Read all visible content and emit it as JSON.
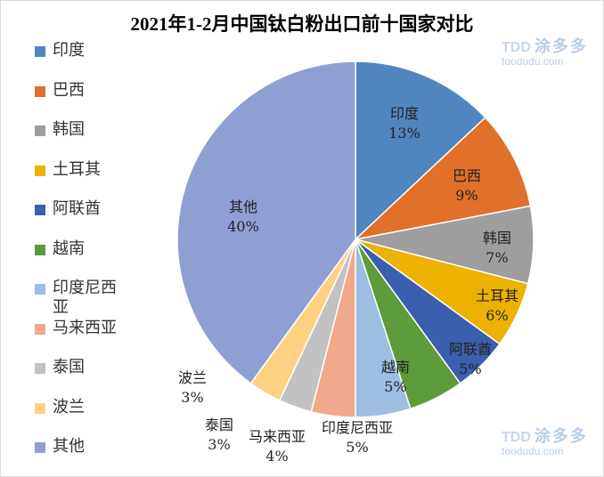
{
  "chart_data": {
    "type": "pie",
    "title": "2021年1-2月中国钛白粉出口前十国家对比",
    "categories": [
      "印度",
      "巴西",
      "韩国",
      "土耳其",
      "阿联酋",
      "越南",
      "印度尼西亚",
      "马来西亚",
      "泰国",
      "波兰",
      "其他"
    ],
    "values": [
      13,
      9,
      7,
      6,
      5,
      5,
      5,
      4,
      3,
      3,
      40
    ],
    "labels": [
      "13%",
      "9%",
      "7%",
      "6%",
      "5%",
      "5%",
      "5%",
      "4%",
      "3%",
      "3%",
      "40%"
    ],
    "colors": [
      "#4f86c0",
      "#e0702a",
      "#9e9e9e",
      "#edb100",
      "#3a5fae",
      "#5e9b3a",
      "#9dbde3",
      "#f0aa8b",
      "#c2c2c2",
      "#fed182",
      "#909fd3"
    ],
    "legend_position": "left",
    "start_angle": "12 o'clock, clockwise"
  },
  "watermark": {
    "brand": "涂多多",
    "logo": "TDD",
    "site": "toodudu.com"
  }
}
